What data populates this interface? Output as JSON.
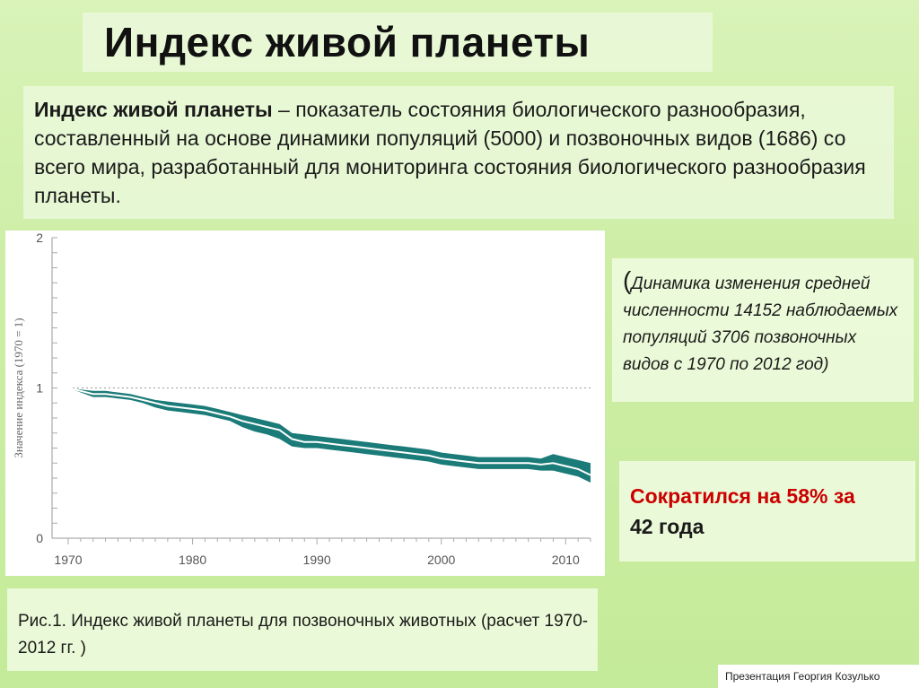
{
  "slide": {
    "title": "Индекс живой планеты",
    "definition_term": "Индекс живой планеты",
    "definition_text": " – показатель состояния биологического разнообразия, составленный на основе динамики популяций (5000) и позвоночных видов (1686) со всего мира, разработанный для мониторинга состояния биологического разнообразия планеты.",
    "note_open_paren": "(",
    "note_text": "Динамика изменения средней численности 14152 наблюдаемых популяций 3706 позвоночных видов с 1970 по 2012 год)",
    "result_highlight": "Сократился на 58% за",
    "result_rest": "42 года",
    "caption": "Рис.1.  Индекс живой планеты для позвоночных животных (расчет 1970-2012 гг. )",
    "credit": "Презентация Георгия Козулько"
  },
  "chart_data": {
    "type": "area",
    "ylabel": "Значение индекса (1970 = 1)",
    "xlabel": "",
    "xlim": [
      1970,
      2012
    ],
    "ylim": [
      0,
      2
    ],
    "x_ticks": [
      "1970",
      "1980",
      "1990",
      "2000",
      "2010"
    ],
    "y_ticks": [
      "0",
      "1",
      "2"
    ],
    "reference_line": 1,
    "colors": {
      "band": "#1a7b78",
      "line": "#ffffff",
      "reference": "#999999"
    },
    "series": [
      {
        "x": [
          1970,
          1971,
          1972,
          1973,
          1974,
          1975,
          1976,
          1977,
          1978,
          1979,
          1980,
          1981,
          1982,
          1983,
          1984,
          1985,
          1986,
          1987,
          1988,
          1989,
          1990,
          1991,
          1992,
          1993,
          1994,
          1995,
          1996,
          1997,
          1998,
          1999,
          2000,
          2001,
          2002,
          2003,
          2004,
          2005,
          2006,
          2007,
          2008,
          2009,
          2010,
          2011,
          2012
        ],
        "values": [
          1.0,
          0.98,
          0.96,
          0.96,
          0.95,
          0.94,
          0.92,
          0.9,
          0.88,
          0.87,
          0.86,
          0.85,
          0.83,
          0.81,
          0.78,
          0.76,
          0.74,
          0.72,
          0.66,
          0.64,
          0.64,
          0.63,
          0.62,
          0.61,
          0.6,
          0.59,
          0.58,
          0.57,
          0.56,
          0.55,
          0.53,
          0.52,
          0.51,
          0.5,
          0.5,
          0.5,
          0.5,
          0.5,
          0.49,
          0.5,
          0.48,
          0.46,
          0.42
        ],
        "lower": [
          1.0,
          0.97,
          0.94,
          0.94,
          0.93,
          0.92,
          0.9,
          0.87,
          0.85,
          0.84,
          0.83,
          0.82,
          0.8,
          0.78,
          0.74,
          0.71,
          0.69,
          0.66,
          0.61,
          0.6,
          0.6,
          0.59,
          0.58,
          0.57,
          0.56,
          0.55,
          0.54,
          0.53,
          0.52,
          0.51,
          0.49,
          0.48,
          0.47,
          0.46,
          0.46,
          0.46,
          0.46,
          0.46,
          0.45,
          0.45,
          0.43,
          0.41,
          0.37
        ],
        "upper": [
          1.0,
          0.99,
          0.98,
          0.98,
          0.97,
          0.96,
          0.94,
          0.92,
          0.91,
          0.9,
          0.89,
          0.88,
          0.86,
          0.84,
          0.82,
          0.8,
          0.78,
          0.76,
          0.7,
          0.69,
          0.68,
          0.67,
          0.66,
          0.65,
          0.64,
          0.63,
          0.62,
          0.61,
          0.6,
          0.59,
          0.57,
          0.56,
          0.55,
          0.54,
          0.54,
          0.54,
          0.54,
          0.54,
          0.53,
          0.56,
          0.54,
          0.52,
          0.5
        ]
      }
    ]
  }
}
